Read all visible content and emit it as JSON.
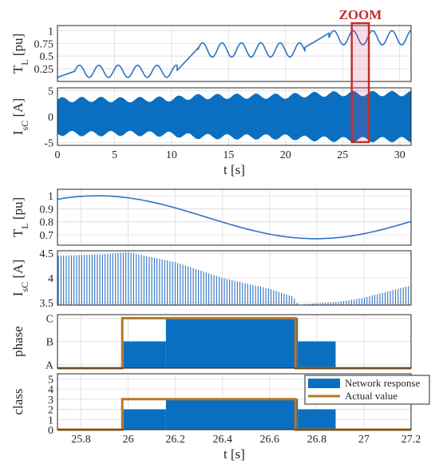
{
  "colors": {
    "series": "#2f73c2",
    "band": "#0a6fc0",
    "actual": "#b5782a",
    "zoom_box": "#c0302a"
  },
  "annotation": {
    "zoom": "ZOOM",
    "zoom_t_range": [
      25.8,
      27.3
    ]
  },
  "chart_data": [
    {
      "id": "tl_full",
      "type": "line",
      "ylabel": "T_L [pu]",
      "xlim": [
        0,
        31
      ],
      "ylim": [
        0,
        1.1
      ],
      "yticks": [
        0.25,
        0.5,
        0.75,
        1
      ],
      "ytick_labels": [
        "0.25",
        "0.5",
        "0.75",
        "1"
      ],
      "xticks": [
        0,
        5,
        10,
        15,
        20,
        25,
        30
      ],
      "grid": true,
      "segments": [
        {
          "t": [
            0,
            1.5
          ],
          "base": 0.08,
          "base_end": 0.2,
          "amp": 0,
          "period": 1
        },
        {
          "t": [
            1.5,
            10.5
          ],
          "base": 0.2,
          "amp": 0.12,
          "period": 1.7
        },
        {
          "t": [
            10.5,
            12.3
          ],
          "base": 0.22,
          "base_end": 0.65,
          "amp": 0,
          "period": 1
        },
        {
          "t": [
            12.3,
            21.7
          ],
          "base": 0.62,
          "amp": 0.14,
          "period": 1.7
        },
        {
          "t": [
            21.7,
            23.8
          ],
          "base": 0.67,
          "base_end": 0.95,
          "amp": 0,
          "period": 1
        },
        {
          "t": [
            23.8,
            31
          ],
          "base": 0.86,
          "amp": 0.14,
          "period": 1.7
        }
      ]
    },
    {
      "id": "isc_full",
      "type": "area",
      "ylabel": "I_sC [A]",
      "xlim": [
        0,
        31
      ],
      "ylim": [
        -5.5,
        5.5
      ],
      "yticks": [
        -5,
        0,
        5
      ],
      "ytick_labels": [
        "-5",
        "0",
        "5"
      ],
      "xticks": [
        0,
        5,
        10,
        15,
        20,
        25,
        30
      ],
      "xtick_labels": [
        "0",
        "5",
        "10",
        "15",
        "20",
        "25",
        "30"
      ],
      "xlabel": "t [s]",
      "grid": true,
      "envelope": [
        {
          "t": 0,
          "amp": 3.2
        },
        {
          "t": 3,
          "amp": 3.3
        },
        {
          "t": 6,
          "amp": 3.2
        },
        {
          "t": 10,
          "amp": 3.4
        },
        {
          "t": 12,
          "amp": 3.8
        },
        {
          "t": 16,
          "amp": 3.9
        },
        {
          "t": 20,
          "amp": 3.9
        },
        {
          "t": 22,
          "amp": 4.2
        },
        {
          "t": 25,
          "amp": 4.4
        },
        {
          "t": 28,
          "amp": 4.4
        },
        {
          "t": 31,
          "amp": 4.4
        }
      ],
      "ripple_amp": 0.5,
      "ripple_period": 1.7
    },
    {
      "id": "tl_zoom",
      "type": "line",
      "ylabel": "T_L [pu]",
      "xlim": [
        25.7,
        27.2
      ],
      "ylim": [
        0.62,
        1.05
      ],
      "yticks": [
        0.7,
        0.8,
        0.9,
        1
      ],
      "ytick_labels": [
        "0.7",
        "0.8",
        "0.9",
        "1"
      ],
      "grid": true,
      "sine": {
        "center": 0.835,
        "amp": 0.165,
        "peak_t": 25.87,
        "period": 1.85
      }
    },
    {
      "id": "isc_zoom",
      "type": "bar",
      "ylabel": "I_sC [A]",
      "xlim": [
        25.7,
        27.2
      ],
      "ylim": [
        3.45,
        4.55
      ],
      "yticks": [
        3.5,
        4,
        4.5
      ],
      "ytick_labels": [
        "3.5",
        "4",
        "4.5"
      ],
      "grid": true,
      "peak_spacing_s": 0.011,
      "envelope": [
        {
          "t": 25.7,
          "peak": 4.45
        },
        {
          "t": 25.9,
          "peak": 4.48
        },
        {
          "t": 26.0,
          "peak": 4.52
        },
        {
          "t": 26.2,
          "peak": 4.32
        },
        {
          "t": 26.4,
          "peak": 4.0
        },
        {
          "t": 26.6,
          "peak": 3.78
        },
        {
          "t": 26.7,
          "peak": 3.62
        },
        {
          "t": 26.72,
          "peak": 3.46
        },
        {
          "t": 26.9,
          "peak": 3.52
        },
        {
          "t": 27.0,
          "peak": 3.6
        },
        {
          "t": 27.2,
          "peak": 3.85
        }
      ]
    },
    {
      "id": "phase",
      "type": "area",
      "ylabel": "phase",
      "xlim": [
        25.7,
        27.2
      ],
      "ylim": [
        0.85,
        3.15
      ],
      "yticks": [
        1,
        2,
        3
      ],
      "ytick_labels": [
        "A",
        "B",
        "C"
      ],
      "grid": true,
      "network_response": [
        {
          "t0": 25.98,
          "t1": 26.16,
          "value": 2
        },
        {
          "t0": 26.16,
          "t1": 26.72,
          "value": 3
        },
        {
          "t0": 26.72,
          "t1": 26.88,
          "value": 2
        }
      ],
      "actual_value": [
        {
          "t": 25.7,
          "value": 0.85
        },
        {
          "t": 25.975,
          "value": 0.85
        },
        {
          "t": 25.975,
          "value": 3
        },
        {
          "t": 26.71,
          "value": 3
        },
        {
          "t": 26.71,
          "value": 0.85
        },
        {
          "t": 27.2,
          "value": 0.85
        }
      ]
    },
    {
      "id": "class",
      "type": "area",
      "ylabel": "class",
      "xlim": [
        25.7,
        27.2
      ],
      "ylim": [
        0,
        5.5
      ],
      "yticks": [
        0,
        1,
        2,
        3,
        4,
        5
      ],
      "ytick_labels": [
        "0",
        "1",
        "2",
        "3",
        "4",
        "5"
      ],
      "xticks": [
        25.8,
        26,
        26.2,
        26.4,
        26.6,
        26.8,
        27,
        27.2
      ],
      "xtick_labels": [
        "25.8",
        "26",
        "26.2",
        "26.4",
        "26.6",
        "26.8",
        "27",
        "27.2"
      ],
      "xlabel": "t [s]",
      "grid": true,
      "network_response": [
        {
          "t0": 25.98,
          "t1": 26.16,
          "value": 2
        },
        {
          "t0": 26.16,
          "t1": 26.72,
          "value": 3
        },
        {
          "t0": 26.72,
          "t1": 26.88,
          "value": 2
        }
      ],
      "actual_value": [
        {
          "t": 25.7,
          "value": 0
        },
        {
          "t": 25.975,
          "value": 0
        },
        {
          "t": 25.975,
          "value": 3
        },
        {
          "t": 26.71,
          "value": 3
        },
        {
          "t": 26.71,
          "value": 0
        },
        {
          "t": 27.2,
          "value": 0
        }
      ],
      "legend": {
        "placement": "top-right",
        "entries": [
          "Network response",
          "Actual value"
        ]
      }
    }
  ]
}
